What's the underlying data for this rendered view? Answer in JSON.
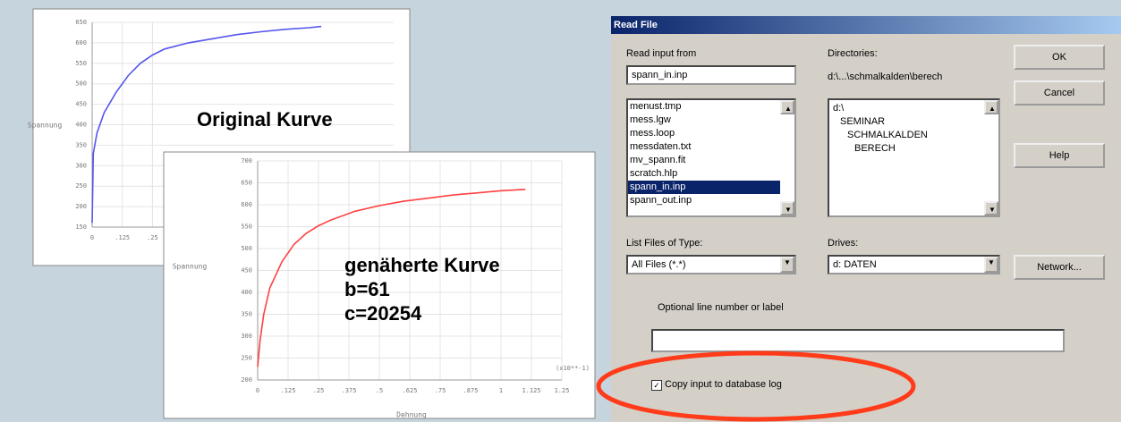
{
  "charts": [
    {
      "type": "line",
      "annotation": "Original Kurve",
      "ylabel": "Spannung",
      "xlim": [
        0,
        1.25
      ],
      "ylim": [
        150,
        650
      ],
      "xticks": [
        0,
        {
          "value": 0.125,
          "label": ".125"
        },
        {
          "value": 0.25,
          "label": ".25"
        }
      ],
      "yticks": [
        150,
        200,
        250,
        300,
        350,
        400,
        450,
        500,
        550,
        600,
        650
      ],
      "color": "#5555ee",
      "x": [
        0,
        0.005,
        0.02,
        0.05,
        0.1,
        0.15,
        0.2,
        0.25,
        0.3,
        0.4,
        0.5,
        0.6,
        0.7,
        0.8,
        0.9,
        0.95
      ],
      "values": [
        160,
        330,
        380,
        430,
        480,
        520,
        550,
        570,
        585,
        600,
        610,
        620,
        627,
        633,
        637,
        640
      ]
    },
    {
      "type": "line",
      "annotation": [
        "genäherte Kurve",
        "b=61",
        "c=20254"
      ],
      "ylabel": "Spannung",
      "xlabel": "Dehnung",
      "xscale_label": "(x10**-1)",
      "xlim": [
        0,
        1.25
      ],
      "ylim": [
        200,
        700
      ],
      "xticks": [
        0,
        {
          "value": 0.125,
          "label": ".125"
        },
        {
          "value": 0.25,
          "label": ".25"
        },
        {
          "value": 0.375,
          "label": ".375"
        },
        {
          "value": 0.5,
          "label": ".5"
        },
        {
          "value": 0.625,
          "label": ".625"
        },
        {
          "value": 0.75,
          "label": ".75"
        },
        {
          "value": 0.875,
          "label": ".875"
        },
        1,
        1.125,
        1.25
      ],
      "yticks": [
        200,
        250,
        300,
        350,
        400,
        450,
        500,
        550,
        600,
        650,
        700
      ],
      "color": "#ff4040",
      "x": [
        0,
        0.01,
        0.025,
        0.05,
        0.1,
        0.15,
        0.2,
        0.25,
        0.3,
        0.4,
        0.5,
        0.6,
        0.7,
        0.8,
        0.9,
        1.0,
        1.1
      ],
      "values": [
        230,
        290,
        350,
        410,
        470,
        510,
        535,
        552,
        565,
        585,
        598,
        608,
        615,
        622,
        627,
        632,
        635
      ]
    }
  ],
  "dialog": {
    "title": "Read File",
    "read_input_label": "Read input from",
    "read_input_value": "spann_in.inp",
    "files": [
      "menust.tmp",
      "mess.lgw",
      "mess.loop",
      "messdaten.txt",
      "mv_spann.fit",
      "scratch.hlp",
      "spann_in.inp",
      "spann_out.inp"
    ],
    "directories_label": "Directories:",
    "directory_path": "d:\\...\\schmalkalden\\berech",
    "tree": [
      "d:\\",
      "SEMINAR",
      "SCHMALKALDEN",
      "BERECH"
    ],
    "buttons": [
      "OK",
      "Cancel",
      "Help",
      "Network..."
    ],
    "file_type_label": "List Files of Type:",
    "file_type_value": "All Files (*.*)",
    "drives_label": "Drives:",
    "drives_value": "d: DATEN",
    "optional_label": "Optional line number or label",
    "checkbox_label": "Copy input to database log"
  }
}
